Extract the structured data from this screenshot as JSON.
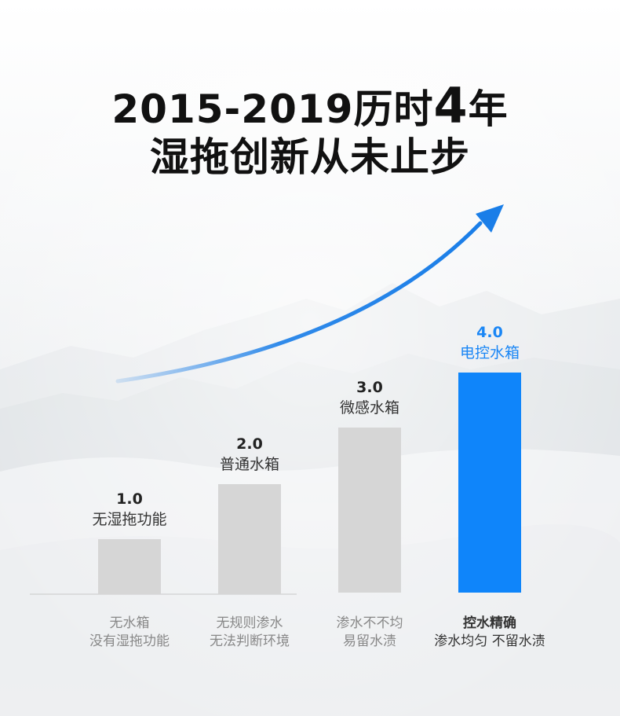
{
  "headline": {
    "line1_prefix": "2015-2019历时",
    "line1_num": "4",
    "line1_suffix": "年",
    "line2": "湿拖创新从未止步"
  },
  "chart_data": {
    "type": "bar",
    "categories": [
      "1.0",
      "2.0",
      "3.0",
      "4.0"
    ],
    "values": [
      1,
      2,
      3,
      4
    ],
    "ylim": [
      0,
      4
    ],
    "grid": false,
    "bar_names": [
      "无湿拖功能",
      "普通水箱",
      "微感水箱",
      "电控水箱"
    ],
    "descriptions": [
      [
        "无水箱",
        "没有湿拖功能"
      ],
      [
        "无规则渗水",
        "无法判断环境"
      ],
      [
        "渗水不不均",
        "易留水渍"
      ],
      [
        "控水精确",
        "渗水均匀 不留水渍"
      ]
    ],
    "highlight_index": 3
  },
  "colors": {
    "bar": "#d6d6d6",
    "bar_highlight": "#0f85fa",
    "arrow": "#1a7ee8",
    "baseline": "#c8c8c8"
  }
}
